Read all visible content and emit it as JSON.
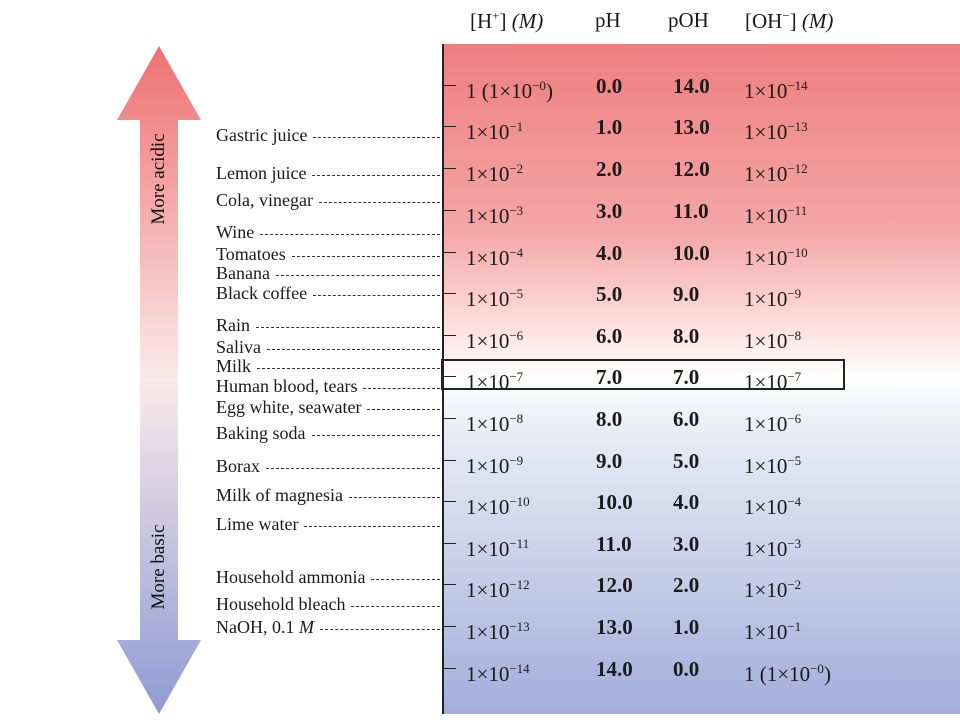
{
  "headers": {
    "h_conc": "[H",
    "h_conc_sup": "+",
    "h_conc_close": "]",
    "h_unit": "(M)",
    "ph": "pH",
    "poh": "pOH",
    "oh_conc": "[OH",
    "oh_conc_sup": "−",
    "oh_conc_close": "]",
    "oh_unit": "(M)"
  },
  "arrow": {
    "up_label": "More acidic",
    "down_label": "More basic",
    "top_color": "#ee7070",
    "bottom_color": "#8d9ad3"
  },
  "rows": [
    {
      "h_base": "1 (1×10",
      "h_exp": "−0",
      "h_suffix": ")",
      "ph": "0.0",
      "poh": "14.0",
      "oh_base": "1×10",
      "oh_exp": "−14",
      "oh_suffix": ""
    },
    {
      "h_base": "1×10",
      "h_exp": "−1",
      "h_suffix": "",
      "ph": "1.0",
      "poh": "13.0",
      "oh_base": "1×10",
      "oh_exp": "−13",
      "oh_suffix": ""
    },
    {
      "h_base": "1×10",
      "h_exp": "−2",
      "h_suffix": "",
      "ph": "2.0",
      "poh": "12.0",
      "oh_base": "1×10",
      "oh_exp": "−12",
      "oh_suffix": ""
    },
    {
      "h_base": "1×10",
      "h_exp": "−3",
      "h_suffix": "",
      "ph": "3.0",
      "poh": "11.0",
      "oh_base": "1×10",
      "oh_exp": "−11",
      "oh_suffix": ""
    },
    {
      "h_base": "1×10",
      "h_exp": "−4",
      "h_suffix": "",
      "ph": "4.0",
      "poh": "10.0",
      "oh_base": "1×10",
      "oh_exp": "−10",
      "oh_suffix": ""
    },
    {
      "h_base": "1×10",
      "h_exp": "−5",
      "h_suffix": "",
      "ph": "5.0",
      "poh": "9.0",
      "oh_base": "1×10",
      "oh_exp": "−9",
      "oh_suffix": ""
    },
    {
      "h_base": "1×10",
      "h_exp": "−6",
      "h_suffix": "",
      "ph": "6.0",
      "poh": "8.0",
      "oh_base": "1×10",
      "oh_exp": "−8",
      "oh_suffix": ""
    },
    {
      "h_base": "1×10",
      "h_exp": "−7",
      "h_suffix": "",
      "ph": "7.0",
      "poh": "7.0",
      "oh_base": "1×10",
      "oh_exp": "−7",
      "oh_suffix": ""
    },
    {
      "h_base": "1×10",
      "h_exp": "−8",
      "h_suffix": "",
      "ph": "8.0",
      "poh": "6.0",
      "oh_base": "1×10",
      "oh_exp": "−6",
      "oh_suffix": ""
    },
    {
      "h_base": "1×10",
      "h_exp": "−9",
      "h_suffix": "",
      "ph": "9.0",
      "poh": "5.0",
      "oh_base": "1×10",
      "oh_exp": "−5",
      "oh_suffix": ""
    },
    {
      "h_base": "1×10",
      "h_exp": "−10",
      "h_suffix": "",
      "ph": "10.0",
      "poh": "4.0",
      "oh_base": "1×10",
      "oh_exp": "−4",
      "oh_suffix": ""
    },
    {
      "h_base": "1×10",
      "h_exp": "−11",
      "h_suffix": "",
      "ph": "11.0",
      "poh": "3.0",
      "oh_base": "1×10",
      "oh_exp": "−3",
      "oh_suffix": ""
    },
    {
      "h_base": "1×10",
      "h_exp": "−12",
      "h_suffix": "",
      "ph": "12.0",
      "poh": "2.0",
      "oh_base": "1×10",
      "oh_exp": "−2",
      "oh_suffix": ""
    },
    {
      "h_base": "1×10",
      "h_exp": "−13",
      "h_suffix": "",
      "ph": "13.0",
      "poh": "1.0",
      "oh_base": "1×10",
      "oh_exp": "−1",
      "oh_suffix": ""
    },
    {
      "h_base": "1×10",
      "h_exp": "−14",
      "h_suffix": "",
      "ph": "14.0",
      "poh": "0.0",
      "oh_base": "1 (1×10",
      "oh_exp": "−0",
      "oh_suffix": ")"
    }
  ],
  "substances": [
    {
      "name": "Gastric juice"
    },
    {
      "name": "Lemon juice"
    },
    {
      "name": "Cola, vinegar"
    },
    {
      "name": "Wine"
    },
    {
      "name": "Tomatoes"
    },
    {
      "name": "Banana"
    },
    {
      "name": "Black coffee"
    },
    {
      "name": "Rain"
    },
    {
      "name": "Saliva"
    },
    {
      "name": "Milk"
    },
    {
      "name": "Human blood, tears"
    },
    {
      "name": "Egg white, seawater"
    },
    {
      "name": "Baking soda"
    },
    {
      "name": "Borax"
    },
    {
      "name": "Milk of magnesia"
    },
    {
      "name": "Lime water"
    },
    {
      "name": "Household ammonia"
    },
    {
      "name": "Household bleach"
    },
    {
      "name": "NaOH, 0.1 ",
      "unit": "M"
    }
  ]
}
